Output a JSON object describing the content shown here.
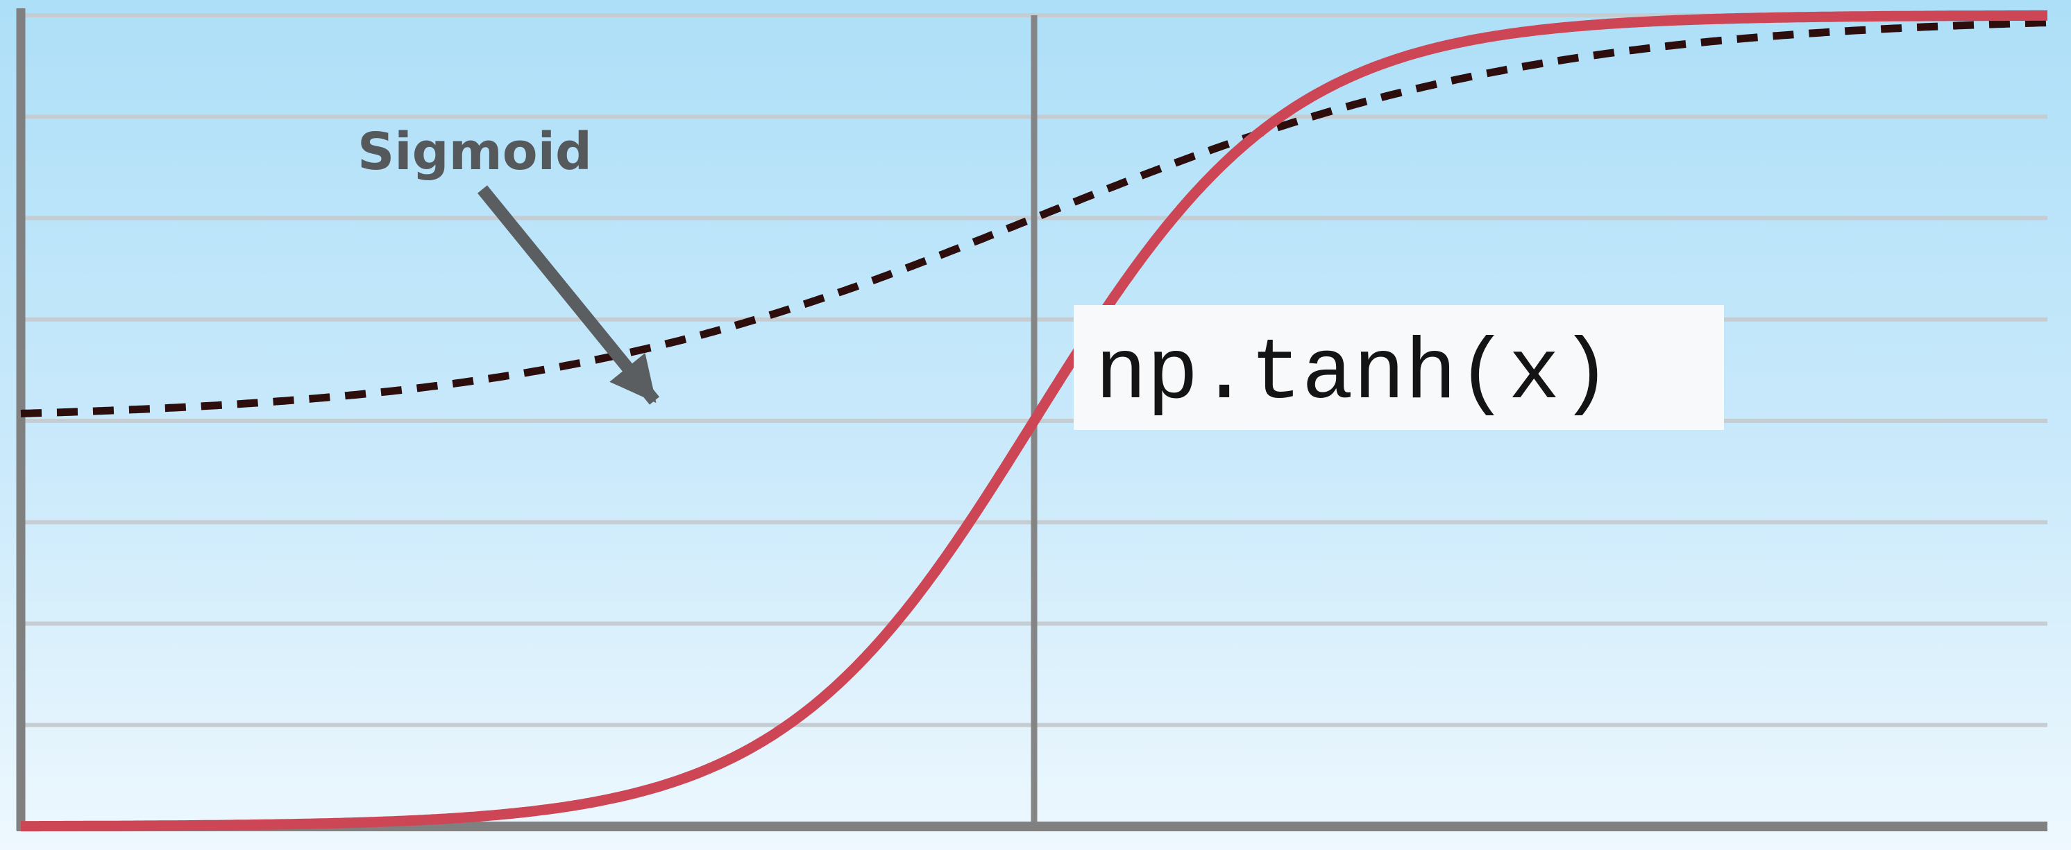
{
  "chart_data": {
    "type": "line",
    "xlim": [
      -4,
      4
    ],
    "ylim": [
      -1,
      1
    ],
    "grid": true,
    "series": [
      {
        "name": "np.tanh(x)",
        "function": "tanh",
        "color": "#cd4656",
        "style": "solid",
        "x": [
          -4,
          -3,
          -2.5,
          -2,
          -1.5,
          -1,
          -0.5,
          0,
          0.5,
          1,
          1.5,
          2,
          2.5,
          3,
          4
        ],
        "y": [
          -0.999,
          -0.995,
          -0.987,
          -0.964,
          -0.905,
          -0.762,
          -0.462,
          0,
          0.462,
          0.762,
          0.905,
          0.964,
          0.987,
          0.995,
          0.999
        ]
      },
      {
        "name": "Sigmoid",
        "function": "sigmoid",
        "color": "#2e0d0d",
        "style": "dashed",
        "x": [
          -4,
          -3,
          -2.5,
          -2,
          -1.5,
          -1,
          -0.5,
          0,
          0.5,
          1,
          1.5,
          2,
          2.5,
          3,
          4
        ],
        "y": [
          0.018,
          0.047,
          0.076,
          0.119,
          0.182,
          0.269,
          0.378,
          0.5,
          0.622,
          0.731,
          0.818,
          0.881,
          0.924,
          0.953,
          0.982
        ]
      }
    ],
    "annotations": [
      {
        "text": "Sigmoid",
        "arrow_to": {
          "x": -1.5,
          "y": 0.0
        }
      },
      {
        "text": "np.tanh(x)"
      }
    ]
  }
}
